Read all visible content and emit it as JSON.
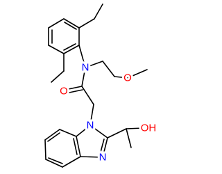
{
  "atoms": [
    {
      "label": "N"
    },
    {
      "label": "O"
    },
    {
      "label": "O"
    },
    {
      "label": "N"
    },
    {
      "label": "N"
    },
    {
      "label": "OH"
    }
  ]
}
